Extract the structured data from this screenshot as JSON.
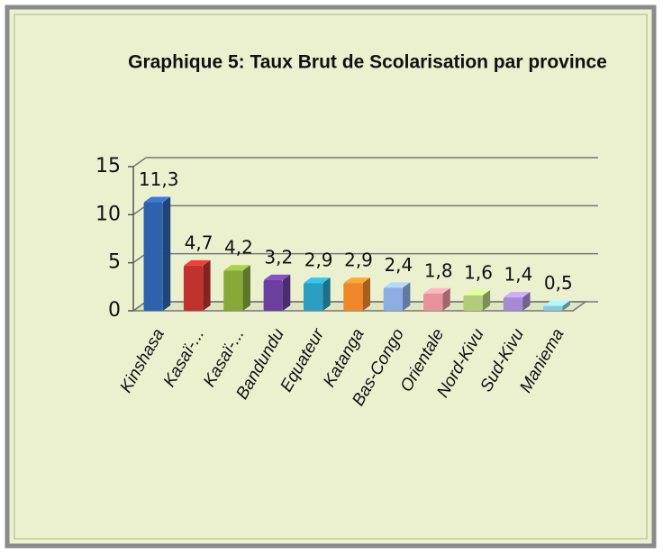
{
  "chart_data": {
    "type": "bar3d",
    "title": "Graphique 5: Taux Brut de Scolarisation par province",
    "categories": [
      "Kinshasa",
      "Kasaï-...",
      "Kasaï-...",
      "Bandundu",
      "Equateur",
      "Katanga",
      "Bas-Congo",
      "Orientale",
      "Nord-Kivu",
      "Sud-Kivu",
      "Maniema"
    ],
    "values": [
      11.3,
      4.7,
      4.2,
      3.2,
      2.9,
      2.9,
      2.4,
      1.8,
      1.6,
      1.4,
      0.5
    ],
    "value_labels": [
      "11,3",
      "4,7",
      "4,2",
      "3,2",
      "2,9",
      "2,9",
      "2,4",
      "1,8",
      "1,6",
      "1,4",
      "0,5"
    ],
    "colors": [
      "#2f62ad",
      "#c0322e",
      "#87a93a",
      "#6a3f9e",
      "#2a9fc2",
      "#f0882a",
      "#8eaee3",
      "#e8929c",
      "#b3cc7a",
      "#a48bd2",
      "#8cc7e2"
    ],
    "ylim": [
      0,
      15
    ],
    "yticks": [
      0,
      5,
      10,
      15
    ],
    "grid": true
  }
}
